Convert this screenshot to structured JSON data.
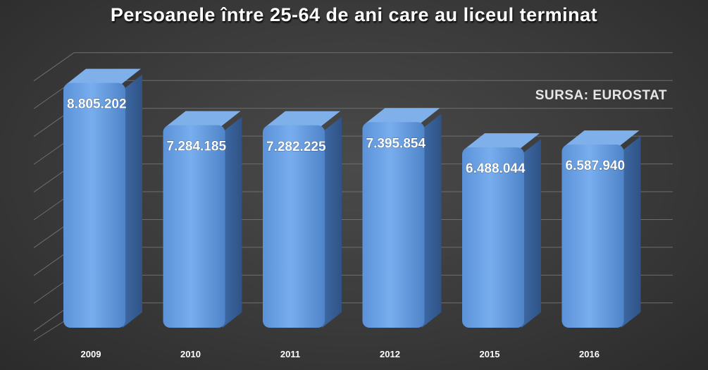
{
  "chart_data": {
    "type": "bar",
    "title": "Persoanele între 25-64 de ani care au liceul terminat",
    "subtitle": "SURSA: EUROSTAT",
    "categories": [
      "2009",
      "2010",
      "2011",
      "2012",
      "2015",
      "2016"
    ],
    "values": [
      8805202,
      7284185,
      7282225,
      7395854,
      6488044,
      6587940
    ],
    "value_labels": [
      "8.805.202",
      "7.284.185",
      "7.282.225",
      "7.395.854",
      "6.488.044",
      "6.587.940"
    ],
    "ylim": [
      0,
      9000000
    ],
    "grid": true,
    "three_d": true,
    "colors": {
      "bar": "#6a9fe0",
      "bar_side": "#3e6aa6",
      "bar_top": "#7fb0ea",
      "background": "#3a3a3a",
      "grid": "#6e6e6e"
    }
  }
}
